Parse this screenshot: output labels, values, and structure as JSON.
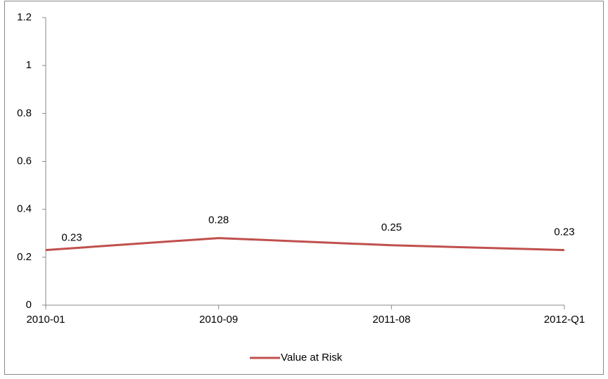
{
  "chart_data": {
    "type": "line",
    "categories": [
      "2010-01",
      "2010-09",
      "2011-08",
      "2012-Q1"
    ],
    "series": [
      {
        "name": "Value at Risk",
        "color": "#c0504d",
        "values": [
          0.23,
          0.28,
          0.25,
          0.23
        ]
      }
    ],
    "ylim": [
      0,
      1.2
    ],
    "yticks": [
      0,
      0.2,
      0.4,
      0.6,
      0.8,
      1,
      1.2
    ],
    "grid": false,
    "legend": "bottom",
    "data_labels": true
  }
}
